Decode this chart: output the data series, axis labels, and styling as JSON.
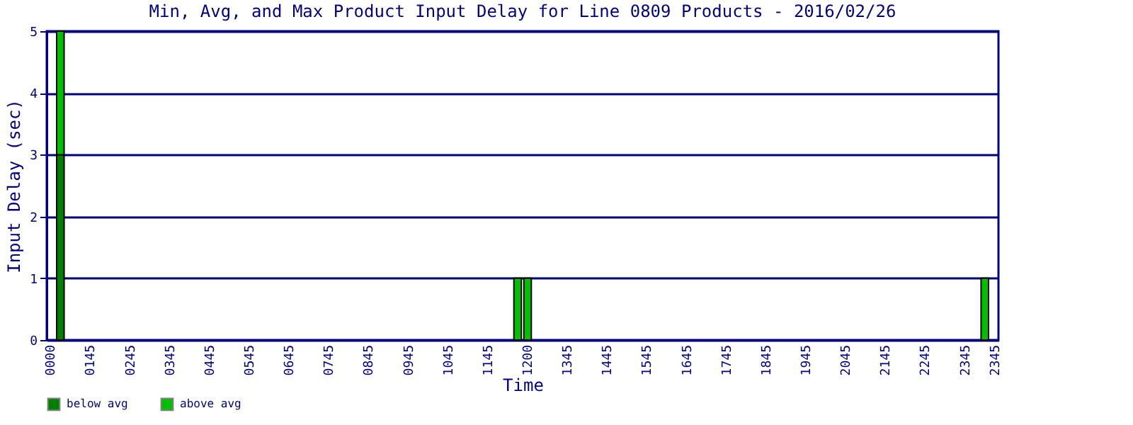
{
  "chart_data": {
    "type": "bar",
    "title": "Min, Avg, and Max Product Input Delay for Line 0809 Products - 2016/02/26",
    "xlabel": "Time",
    "ylabel": "Input Delay (sec)",
    "categories": [
      "0000",
      null,
      null,
      null,
      "0145",
      null,
      null,
      null,
      "0245",
      null,
      null,
      null,
      "0345",
      null,
      null,
      null,
      "0445",
      null,
      null,
      null,
      "0545",
      null,
      null,
      null,
      "0645",
      null,
      null,
      null,
      "0745",
      null,
      null,
      null,
      "0845",
      null,
      null,
      null,
      "0945",
      null,
      null,
      null,
      "1045",
      null,
      null,
      null,
      "1145",
      null,
      null,
      null,
      "1200",
      null,
      null,
      null,
      "1345",
      null,
      null,
      null,
      "1445",
      null,
      null,
      null,
      "1545",
      null,
      null,
      null,
      "1645",
      null,
      null,
      null,
      "1745",
      null,
      null,
      null,
      "1845",
      null,
      null,
      null,
      "1945",
      null,
      null,
      null,
      "2045",
      null,
      null,
      null,
      "2145",
      null,
      null,
      null,
      "2245",
      null,
      null,
      null,
      "2345",
      null,
      null,
      "2345"
    ],
    "stacked": true,
    "series": [
      {
        "name": "below avg",
        "color": "#008000",
        "values": [
          null,
          3,
          null,
          null,
          null,
          null,
          null,
          null,
          null,
          null,
          null,
          null,
          null,
          null,
          null,
          null,
          null,
          null,
          null,
          null,
          null,
          null,
          null,
          null,
          null,
          null,
          null,
          null,
          null,
          null,
          null,
          null,
          null,
          null,
          null,
          null,
          null,
          null,
          null,
          null,
          null,
          null,
          null,
          null,
          null,
          null,
          null,
          null,
          null,
          null,
          null,
          null,
          null,
          null,
          null,
          null,
          null,
          null,
          null,
          null,
          null,
          null,
          null,
          null,
          null,
          null,
          null,
          null,
          null,
          null,
          null,
          null,
          null,
          null,
          null,
          null,
          null,
          null,
          null,
          null,
          null,
          null,
          null,
          null,
          null,
          null,
          null,
          null,
          null,
          null,
          null,
          null,
          null,
          null,
          null,
          null
        ]
      },
      {
        "name": "above avg",
        "color": "#00c000",
        "values": [
          null,
          2,
          null,
          null,
          null,
          null,
          null,
          null,
          null,
          null,
          null,
          null,
          null,
          null,
          null,
          null,
          null,
          null,
          null,
          null,
          null,
          null,
          null,
          null,
          null,
          null,
          null,
          null,
          null,
          null,
          null,
          null,
          null,
          null,
          null,
          null,
          null,
          null,
          null,
          null,
          null,
          null,
          null,
          null,
          null,
          null,
          null,
          1,
          1,
          null,
          null,
          null,
          null,
          null,
          null,
          null,
          null,
          null,
          null,
          null,
          null,
          null,
          null,
          null,
          null,
          null,
          null,
          null,
          null,
          null,
          null,
          null,
          null,
          null,
          null,
          null,
          null,
          null,
          null,
          null,
          null,
          null,
          null,
          null,
          null,
          null,
          null,
          null,
          null,
          null,
          null,
          null,
          null,
          null,
          1,
          null
        ]
      }
    ],
    "ylim": [
      0,
      5
    ],
    "yticks": [
      0,
      1,
      2,
      3,
      4,
      5
    ],
    "grid": "y",
    "legend": "bottom"
  }
}
